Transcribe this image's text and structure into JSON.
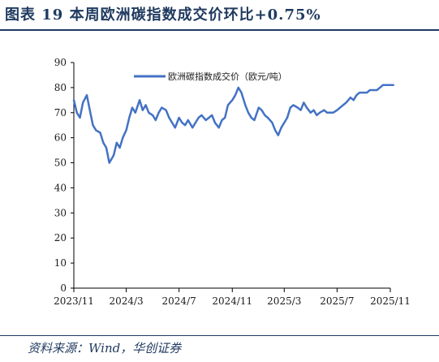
{
  "figure": {
    "title": "图表 19   本周欧洲碳指数成交价环比+0.75%",
    "source": "资料来源：Wind，华创证券"
  },
  "chart_data": {
    "type": "line",
    "title": "",
    "xlabel": "",
    "ylabel": "",
    "ylim": [
      0,
      90
    ],
    "yticks": [
      0,
      10,
      20,
      30,
      40,
      50,
      60,
      70,
      80,
      90
    ],
    "xticks": [
      "2023/11",
      "2024/3",
      "2024/7",
      "2024/11",
      "2025/3",
      "2025/7",
      "2025/11"
    ],
    "grid": false,
    "legend_position": "top",
    "colors": {
      "line": "#4472c4",
      "axis": "#000000"
    },
    "series": [
      {
        "name": "欧洲碳指数成交价（欧元/吨）",
        "x": [
          "2023/11/01",
          "2023/11/08",
          "2023/11/15",
          "2023/11/22",
          "2023/12/01",
          "2023/12/08",
          "2023/12/15",
          "2023/12/22",
          "2024/01/01",
          "2024/01/08",
          "2024/01/15",
          "2024/01/22",
          "2024/02/01",
          "2024/02/08",
          "2024/02/15",
          "2024/02/22",
          "2024/03/01",
          "2024/03/08",
          "2024/03/15",
          "2024/03/22",
          "2024/04/01",
          "2024/04/08",
          "2024/04/15",
          "2024/04/22",
          "2024/05/01",
          "2024/05/08",
          "2024/05/15",
          "2024/05/22",
          "2024/06/01",
          "2024/06/08",
          "2024/06/15",
          "2024/06/22",
          "2024/07/01",
          "2024/07/08",
          "2024/07/15",
          "2024/07/22",
          "2024/08/01",
          "2024/08/08",
          "2024/08/15",
          "2024/08/22",
          "2024/09/01",
          "2024/09/08",
          "2024/09/15",
          "2024/09/22",
          "2024/10/01",
          "2024/10/08",
          "2024/10/15",
          "2024/10/22",
          "2024/11/01",
          "2024/11/08",
          "2024/11/15",
          "2024/11/22",
          "2024/12/01",
          "2024/12/08",
          "2024/12/15",
          "2024/12/22",
          "2025/01/01",
          "2025/01/08",
          "2025/01/15",
          "2025/01/22",
          "2025/02/01",
          "2025/02/08",
          "2025/02/15",
          "2025/02/22",
          "2025/03/01",
          "2025/03/08",
          "2025/03/15",
          "2025/03/22",
          "2025/04/01",
          "2025/04/08",
          "2025/04/15",
          "2025/04/22",
          "2025/05/01",
          "2025/05/08",
          "2025/05/15",
          "2025/05/22",
          "2025/06/01",
          "2025/06/08",
          "2025/06/15",
          "2025/06/22",
          "2025/07/01",
          "2025/07/08",
          "2025/07/15",
          "2025/07/22",
          "2025/08/01",
          "2025/08/08",
          "2025/08/15",
          "2025/08/22",
          "2025/09/01",
          "2025/09/08",
          "2025/09/15",
          "2025/09/22",
          "2025/10/01",
          "2025/10/08",
          "2025/10/15",
          "2025/10/22",
          "2025/11/01",
          "2025/11/08"
        ],
        "y": [
          75,
          70,
          68,
          74,
          77,
          71,
          65,
          63,
          62,
          58,
          56,
          50,
          53,
          58,
          56,
          60,
          63,
          68,
          72,
          70,
          75,
          71,
          73,
          70,
          69,
          67,
          70,
          72,
          71,
          68,
          66,
          64,
          68,
          66,
          65,
          67,
          64,
          66,
          68,
          69,
          67,
          68,
          69,
          66,
          64,
          67,
          68,
          73,
          75,
          77,
          80,
          78,
          73,
          70,
          68,
          67,
          72,
          71,
          69,
          68,
          66,
          63,
          61,
          64,
          66,
          68,
          72,
          73,
          72,
          71,
          74,
          72,
          70,
          71,
          69,
          70,
          71,
          70,
          70,
          70,
          71,
          72,
          73,
          74,
          76,
          75,
          77,
          78,
          78,
          78,
          79,
          79,
          79,
          80,
          81,
          81,
          81,
          81
        ]
      }
    ]
  }
}
